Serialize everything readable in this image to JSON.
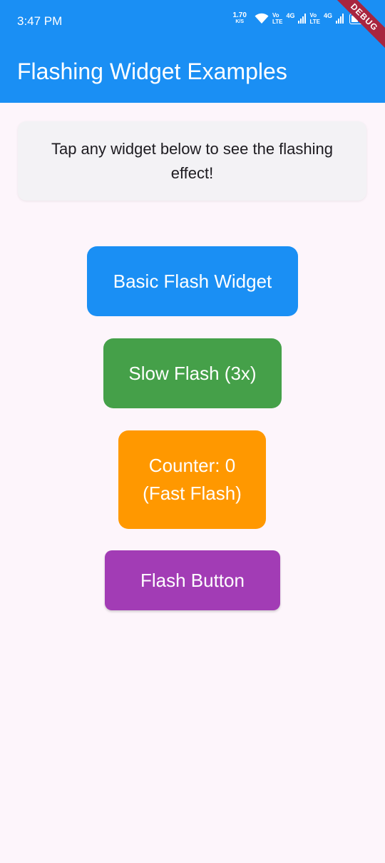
{
  "status_bar": {
    "time": "3:47 PM",
    "net_speed_value": "1.70",
    "net_speed_unit": "K/S",
    "volte1_top": "Vo",
    "volte1_bottom": "LTE",
    "net1": "4G",
    "volte2_top": "Vo",
    "volte2_bottom": "LTE",
    "net2": "4G"
  },
  "debug_banner": "DEBUG",
  "app_bar": {
    "title": "Flashing Widget Examples"
  },
  "info_card": {
    "text": "Tap any widget below to see the flashing effect!"
  },
  "widgets": {
    "basic": {
      "label": "Basic Flash Widget",
      "color": "#1a8ff4"
    },
    "slow": {
      "label": "Slow Flash (3x)",
      "color": "#45a049"
    },
    "counter": {
      "line1": "Counter: 0",
      "line2": "(Fast Flash)",
      "color": "#ff9800"
    },
    "button": {
      "label": "Flash Button",
      "color": "#a23cb5"
    }
  },
  "colors": {
    "app_bar": "#1a8ff4",
    "background": "#fdf5fb",
    "card": "#f3f2f5"
  }
}
